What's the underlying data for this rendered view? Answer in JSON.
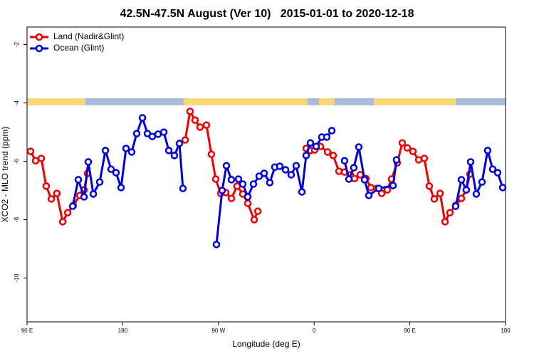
{
  "chart_data": {
    "type": "line",
    "title": "42.5N-47.5N August (Ver 10)   2015-01-01 to 2020-12-18",
    "xlabel": "Longitude (deg E)",
    "ylabel": "XCO2 - MLO trend (ppm)",
    "xlim": [
      90,
      540
    ],
    "xticks": [
      {
        "value": 90,
        "label": "90 E"
      },
      {
        "value": 180,
        "label": "180"
      },
      {
        "value": 270,
        "label": "90 W"
      },
      {
        "value": 360,
        "label": "0"
      },
      {
        "value": 450,
        "label": "90 E"
      },
      {
        "value": 540,
        "label": "180"
      }
    ],
    "ylim": [
      -11.5,
      -1.4
    ],
    "yticks": [
      -2,
      -4,
      -6,
      -8,
      -10
    ],
    "legend": "top-left",
    "series": [
      {
        "name": "Land (Nadir&Glint)",
        "color": "#ee0000",
        "x": [
          93.3,
          98,
          103.4,
          108,
          112.8,
          118,
          123.5,
          128.2,
          133.5,
          139.6,
          143.6,
          146.9,
          null,
          238.7,
          243.3,
          248,
          252.7,
          258.7,
          263.4,
          267.4,
          272.1,
          276.8,
          282.2,
          287.5,
          292.9,
          297.6,
          303.6,
          307,
          null,
          352.5,
          356.5,
          360.5,
          365.9,
          372.6,
          377.9,
          383.3,
          388.6,
          394,
          398,
          403.4,
          408.7,
          413.4,
          418.8,
          423.5,
          428.8,
          432.8,
          438.2,
          442.9,
          447.6,
          452.9,
          458.3,
          463.6,
          468.3,
          473,
          478.4,
          483.1,
          487.7,
          493.1,
          498.5,
          503.1,
          506.5
        ],
        "values": [
          -5.66,
          -5.98,
          -5.9,
          -6.85,
          -7.29,
          -7.1,
          -8.07,
          -7.76,
          -7.51,
          -7.17,
          -6.98,
          -6.41,
          null,
          -5.27,
          -4.29,
          -4.59,
          -4.83,
          -4.76,
          -5.76,
          -6.61,
          -7.1,
          -7.07,
          -7.27,
          -6.85,
          -7.12,
          -7.44,
          -8.0,
          -7.71,
          null,
          -5.56,
          -5.63,
          -5.61,
          -5.49,
          -5.68,
          -5.8,
          -6.34,
          -6.37,
          -6.46,
          -6.59,
          -6.46,
          -6.59,
          -6.9,
          -6.93,
          -7.1,
          -6.98,
          -6.61,
          -6.05,
          -5.37,
          -5.54,
          -5.66,
          -5.95,
          -5.9,
          -6.85,
          -7.29,
          -7.1,
          -8.07,
          -7.76,
          -7.51,
          -7.27,
          -6.98,
          -6.44
        ]
      },
      {
        "name": "Ocean (Glint)",
        "color": "#0000dd",
        "x": [
          132.9,
          138.2,
          143.6,
          147.6,
          152.3,
          158.3,
          163.7,
          169,
          173.7,
          178.4,
          183.1,
          188.4,
          193.1,
          198.5,
          203.2,
          207.8,
          213.2,
          218.6,
          223.3,
          228.6,
          233.3,
          236.6,
          null,
          268.1,
          273.5,
          277.5,
          282.2,
          288.9,
          292.9,
          297.6,
          302.9,
          308.3,
          313,
          318.3,
          323,
          327.7,
          333.1,
          338.4,
          343.1,
          348.5,
          352.5,
          356.5,
          361.9,
          367.2,
          371.9,
          376.6,
          null,
          388.6,
          392.7,
          397.3,
          402,
          407.4,
          411.4,
          420.8,
          434.2,
          437.5,
          null,
          493.1,
          498.5,
          503.1,
          507.2,
          512.5,
          517.9,
          523.2,
          527.9,
          532.6,
          537.3
        ],
        "values": [
          -7.54,
          -6.63,
          -7.22,
          -6.02,
          -7.12,
          -6.71,
          -5.63,
          -6.27,
          -6.39,
          -6.9,
          -5.56,
          -5.68,
          -5.05,
          -4.51,
          -5.05,
          -5.15,
          -5.07,
          -5.0,
          -5.63,
          -5.8,
          -5.39,
          -6.93,
          null,
          -8.85,
          -7.0,
          -6.15,
          -6.63,
          -6.61,
          -6.78,
          -7.22,
          -6.78,
          -6.51,
          -6.41,
          -6.73,
          -6.2,
          -6.17,
          -6.29,
          -6.46,
          -6.15,
          -7.05,
          -5.8,
          -5.37,
          -5.49,
          -5.17,
          -5.17,
          -4.95,
          null,
          -5.98,
          -6.61,
          -6.22,
          -5.51,
          -6.63,
          -7.17,
          -6.93,
          -6.83,
          -5.95,
          null,
          -7.54,
          -6.63,
          -6.98,
          -6.02,
          -7.12,
          -6.71,
          -5.63,
          -6.27,
          -6.39,
          -6.9
        ]
      }
    ]
  }
}
